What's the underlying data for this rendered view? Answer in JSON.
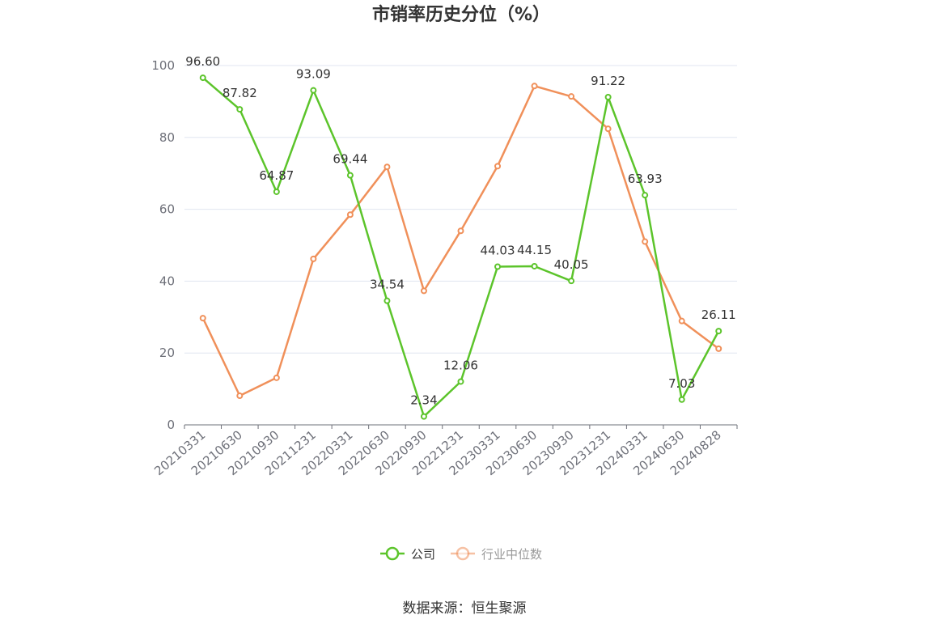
{
  "chart_data": {
    "type": "line",
    "title": "市销率历史分位（%）",
    "x": [
      "20210331",
      "20210630",
      "20210930",
      "20211231",
      "20220331",
      "20220630",
      "20220930",
      "20221231",
      "20230331",
      "20230630",
      "20230930",
      "20231231",
      "20240331",
      "20240630",
      "20240828"
    ],
    "ylim": [
      0,
      100
    ],
    "yticks": [
      0,
      20,
      40,
      60,
      80,
      100
    ],
    "grid": true,
    "legend_position": "bottom-center",
    "series": [
      {
        "name": "公司",
        "color": "#5cc42b",
        "values": [
          96.6,
          87.82,
          64.87,
          93.09,
          69.44,
          34.54,
          2.34,
          12.06,
          44.03,
          44.15,
          40.05,
          91.22,
          63.93,
          7.03,
          26.11
        ],
        "labels": [
          "96.60",
          "87.82",
          "64.87",
          "93.09",
          "69.44",
          "34.54",
          "2.34",
          "12.06",
          "44.03",
          "44.15",
          "40.05",
          "91.22",
          "63.93",
          "7.03",
          "26.11"
        ]
      },
      {
        "name": "行业中位数",
        "color": "#f0905a",
        "values": [
          29.7,
          8.1,
          13.1,
          46.2,
          58.5,
          71.8,
          37.3,
          54.0,
          72.0,
          94.3,
          91.4,
          82.4,
          51.0,
          28.9,
          21.2
        ]
      }
    ],
    "source": "数据来源：恒生聚源"
  }
}
